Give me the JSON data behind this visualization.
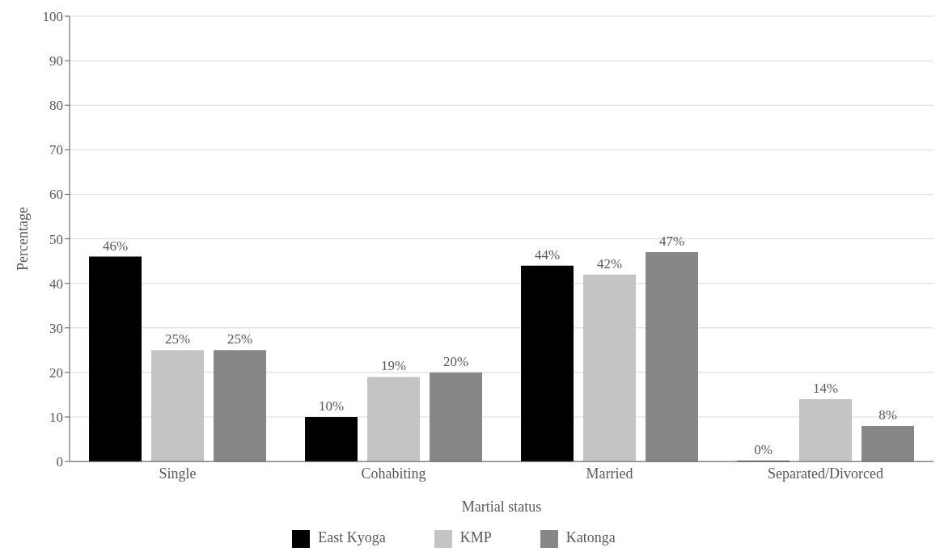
{
  "chart_data": {
    "type": "bar",
    "xlabel": "Martial status",
    "ylabel": "Percentage",
    "categories": [
      "Single",
      "Cohabiting",
      "Married",
      "Separated/Divorced"
    ],
    "series": [
      {
        "name": "East Kyoga",
        "color": "#000000",
        "values": [
          46,
          10,
          44,
          0
        ],
        "value_labels": [
          "46%",
          "10%",
          "44%",
          "0%"
        ]
      },
      {
        "name": "KMP",
        "color": "#c4c4c4",
        "values": [
          25,
          19,
          42,
          14
        ],
        "value_labels": [
          "25%",
          "19%",
          "42%",
          "14%"
        ]
      },
      {
        "name": "Katonga",
        "color": "#878787",
        "values": [
          25,
          20,
          47,
          8
        ],
        "value_labels": [
          "25%",
          "20%",
          "47%",
          "8%"
        ]
      }
    ],
    "ylim": [
      0,
      100
    ],
    "yticks": [
      0,
      10,
      20,
      30,
      40,
      50,
      60,
      70,
      80,
      90,
      100
    ],
    "grid": "y",
    "legend": "bottom"
  }
}
